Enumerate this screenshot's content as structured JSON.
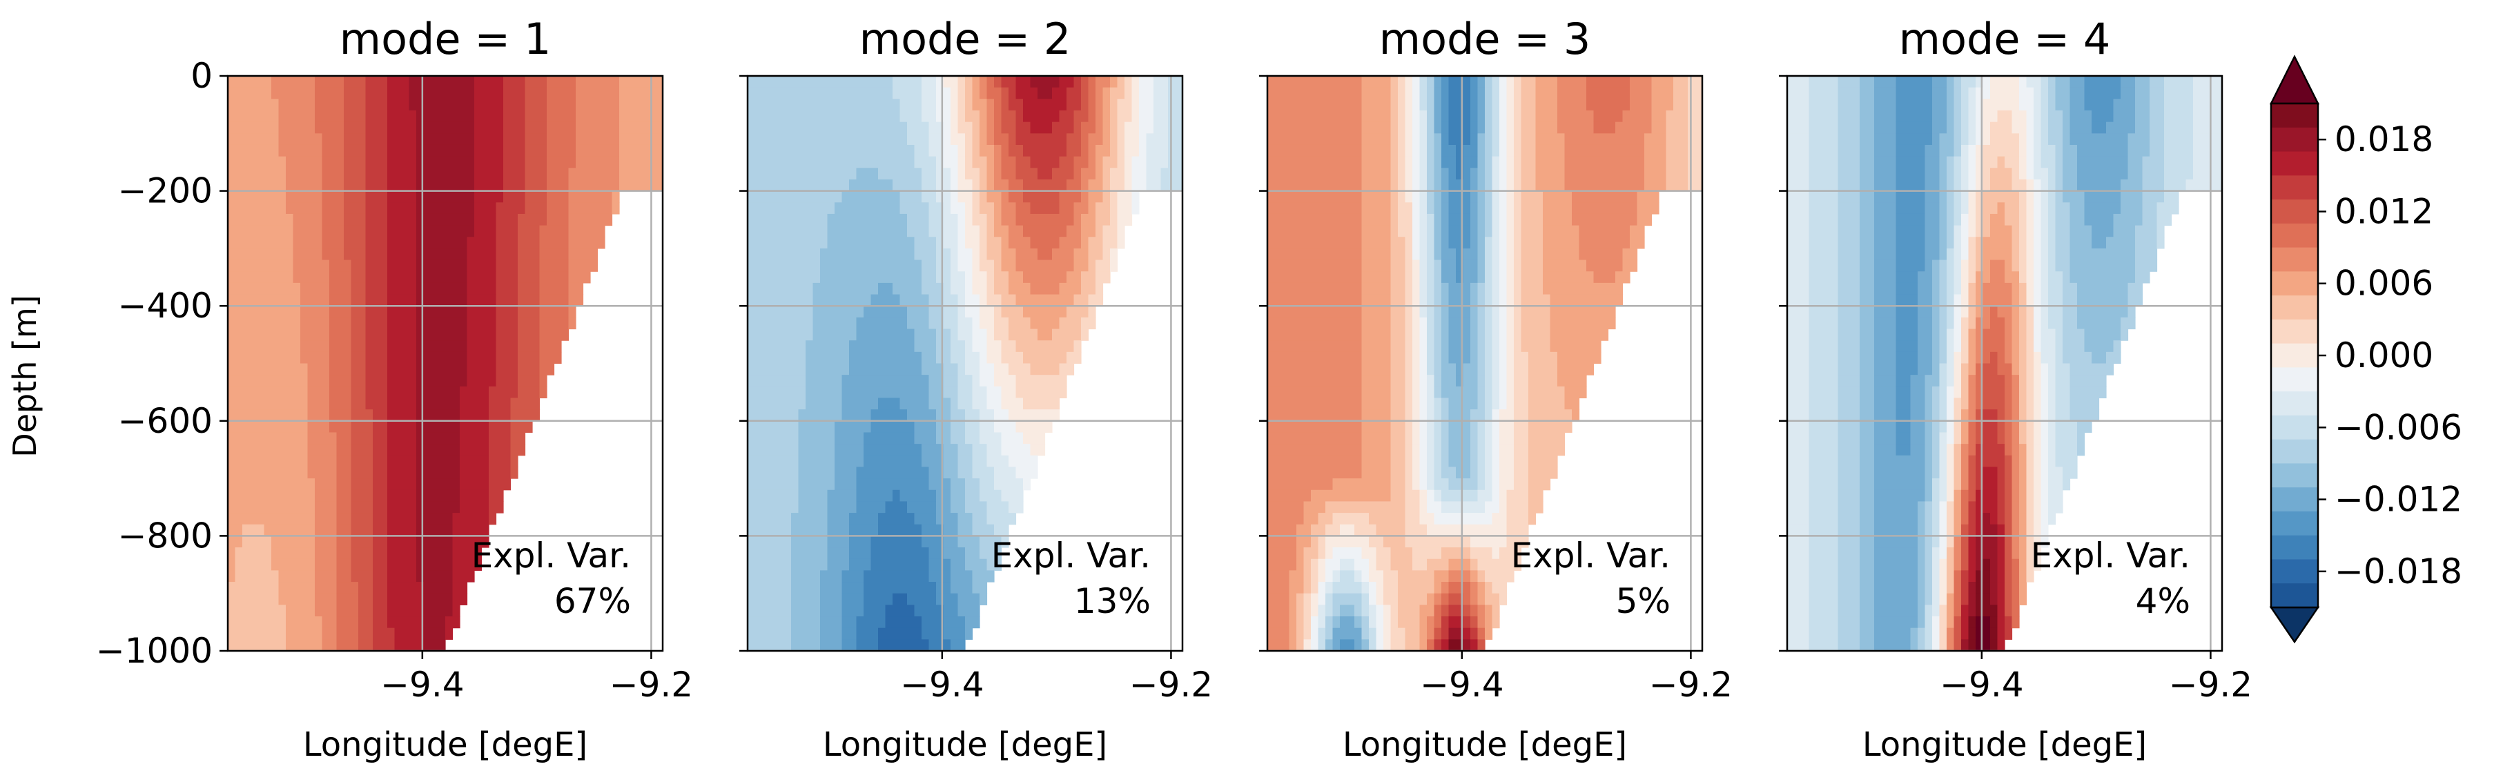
{
  "chart_data": {
    "type": "heatmap",
    "description_kind": "filled-contour EOF mode panels",
    "colormap": "RdBu_r",
    "ylabel": "Depth [m]",
    "xlabel": "Longitude [degE]",
    "xlim": [
      -9.57,
      -9.19
    ],
    "ylim": [
      -1000,
      0
    ],
    "xticks": [
      -9.4,
      -9.2
    ],
    "xtick_labels": [
      "−9.4",
      "−9.2"
    ],
    "yticks": [
      0,
      -200,
      -400,
      -600,
      -800,
      -1000
    ],
    "ytick_labels": [
      "0",
      "−200",
      "−400",
      "−600",
      "−800",
      "−1000"
    ],
    "grid": true,
    "explained_variance_label": "Expl. Var.",
    "panels": [
      {
        "title": "mode = 1",
        "expl_var": "67%"
      },
      {
        "title": "mode = 2",
        "expl_var": "13%"
      },
      {
        "title": "mode = 3",
        "expl_var": "5%"
      },
      {
        "title": "mode = 4",
        "expl_var": "4%"
      }
    ],
    "colorbar": {
      "range": [
        -0.021,
        0.021
      ],
      "extend": "both",
      "ticks": [
        0.018,
        0.012,
        0.006,
        0.0,
        -0.006,
        -0.012,
        -0.018
      ],
      "tick_labels": [
        "0.018",
        "0.012",
        "0.006",
        "0.000",
        "−0.006",
        "−0.012",
        "−0.018"
      ],
      "colors_top_to_bottom": [
        "#7f0d1e",
        "#9a1629",
        "#b31e2e",
        "#c43c3c",
        "#d25849",
        "#df7057",
        "#ea8a6b",
        "#f3a683",
        "#f8c2a6",
        "#fad8c5",
        "#f9ebe2",
        "#eef2f6",
        "#dce9f1",
        "#c8dfec",
        "#b0d1e5",
        "#92c0dc",
        "#72abd1",
        "#5597c6",
        "#3e82b9",
        "#2b6aaa",
        "#1d5696"
      ],
      "extend_low_color": "#0c3466",
      "extend_high_color": "#67001f"
    }
  }
}
